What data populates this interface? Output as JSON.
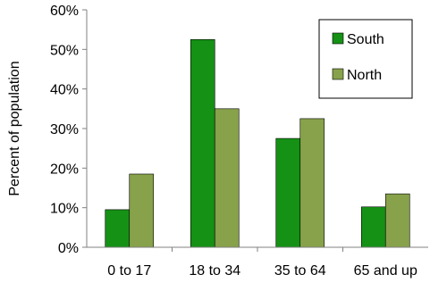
{
  "chart_data": {
    "type": "bar",
    "title": "",
    "xlabel": "",
    "ylabel": "Percent of population",
    "ylim": [
      0,
      60
    ],
    "y_ticks": [
      "0%",
      "10%",
      "20%",
      "30%",
      "40%",
      "50%",
      "60%"
    ],
    "grid": false,
    "legend_position": "top-right",
    "categories": [
      "0 to 17",
      "18 to 34",
      "35 to 64",
      "65 and up"
    ],
    "series": [
      {
        "name": "South",
        "color": "#159115",
        "values": [
          9.5,
          52.5,
          27.5,
          10.2
        ]
      },
      {
        "name": "North",
        "color": "#87A24A",
        "values": [
          18.5,
          35.0,
          32.5,
          13.5
        ]
      }
    ]
  }
}
